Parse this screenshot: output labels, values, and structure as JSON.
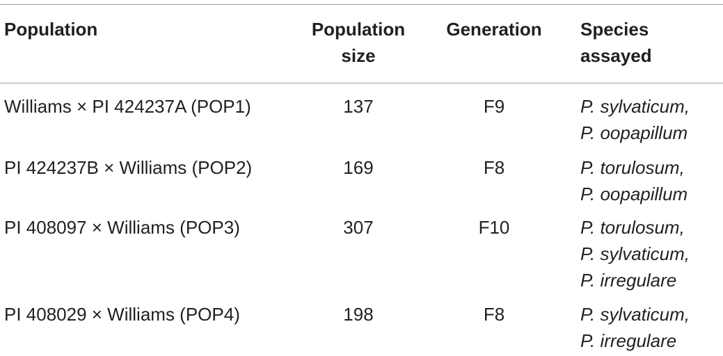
{
  "table": {
    "headers": {
      "population": "Population",
      "size_line1": "Population",
      "size_line2": "size",
      "generation": "Generation",
      "species_line1": "Species",
      "species_line2": "assayed"
    },
    "rows": [
      {
        "population": "Williams × PI 424237A (POP1)",
        "size": "137",
        "generation": "F9",
        "species": [
          "P. sylvaticum,",
          "P. oopapillum"
        ]
      },
      {
        "population": "PI 424237B × Williams (POP2)",
        "size": "169",
        "generation": "F8",
        "species": [
          "P. torulosum,",
          "P. oopapillum"
        ]
      },
      {
        "population": "PI 408097 × Williams (POP3)",
        "size": "307",
        "generation": "F10",
        "species": [
          "P. torulosum,",
          "P. sylvaticum,",
          "P. irregulare"
        ]
      },
      {
        "population": "PI 408029 × Williams (POP4)",
        "size": "198",
        "generation": "F8",
        "species": [
          "P. sylvaticum,",
          "P. irregulare"
        ]
      }
    ]
  }
}
